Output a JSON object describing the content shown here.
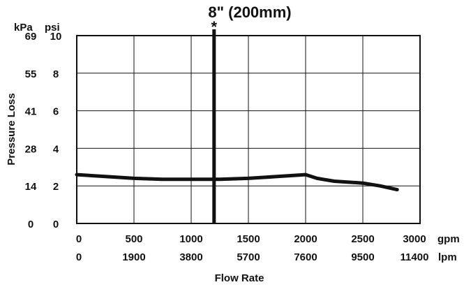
{
  "chart_data": {
    "type": "line",
    "title": "8\" (200mm)",
    "xlabel": "Flow Rate",
    "ylabel": "Pressure Loss",
    "units": {
      "x_primary": "gpm",
      "x_secondary": "lpm",
      "y_primary": "psi",
      "y_secondary": "kPa"
    },
    "xlim": [
      0,
      3000
    ],
    "ylim": [
      0,
      10
    ],
    "grid": true,
    "x_ticks_gpm": [
      "0",
      "500",
      "1000",
      "1500",
      "2000",
      "2500",
      "3000"
    ],
    "x_ticks_lpm": [
      "0",
      "1900",
      "3800",
      "5700",
      "7600",
      "9500",
      "11400"
    ],
    "y_ticks_psi": [
      "0",
      "2",
      "4",
      "6",
      "8",
      "10"
    ],
    "y_ticks_kpa": [
      "0",
      "14",
      "28",
      "41",
      "55",
      "69"
    ],
    "marker": {
      "x": 1200,
      "label": "*"
    },
    "series": [
      {
        "x": [
          0,
          250,
          500,
          750,
          1000,
          1250,
          1500,
          1750,
          2000,
          2100,
          2250,
          2500,
          2650,
          2800
        ],
        "y": [
          2.6,
          2.5,
          2.4,
          2.35,
          2.35,
          2.35,
          2.4,
          2.5,
          2.6,
          2.4,
          2.25,
          2.15,
          2.0,
          1.8
        ]
      }
    ],
    "colors": {
      "line": "#111111",
      "grid": "#111111"
    }
  }
}
